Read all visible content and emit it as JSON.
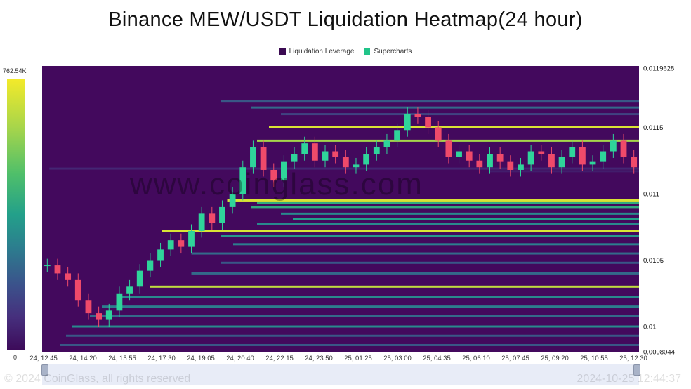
{
  "page": {
    "title": "Binance MEW/USDT Liquidation Heatmap(24 hour)",
    "watermark": "www.coinglass.com",
    "footer_copyright": "© 2024 CoinGlass, all rights reserved",
    "footer_timestamp": "2024-10-25 12:44:37"
  },
  "legend": {
    "items": [
      {
        "label": "Liquidation Leverage",
        "color": "#3b0a52"
      },
      {
        "label": "Supercharts",
        "color": "#21c489"
      }
    ]
  },
  "colorbar": {
    "max_label": "762.54K",
    "min_label": "0"
  },
  "chart_data": {
    "type": "heatmap",
    "title": "Binance MEW/USDT Liquidation Heatmap(24 hour)",
    "ylim": [
      0.0098044,
      0.0119628
    ],
    "y_tick_labels": [
      "0.0119628",
      "0.0115",
      "0.011",
      "0.0105",
      "0.01",
      "0.0098044"
    ],
    "y_tick_values": [
      0.0119628,
      0.0115,
      0.011,
      0.0105,
      0.01,
      0.0098044
    ],
    "x_tick_labels": [
      "24, 12:45",
      "24, 14:20",
      "24, 15:55",
      "24, 17:30",
      "24, 19:05",
      "24, 20:40",
      "24, 22:15",
      "24, 23:50",
      "25, 01:25",
      "25, 03:00",
      "25, 04:35",
      "25, 06:10",
      "25, 07:45",
      "25, 09:20",
      "25, 10:55",
      "25, 12:30"
    ],
    "price_series": [
      0.01046,
      0.0104,
      0.01035,
      0.0102,
      0.0101,
      0.01005,
      0.01012,
      0.01025,
      0.0103,
      0.01042,
      0.0105,
      0.01058,
      0.01065,
      0.0106,
      0.01072,
      0.01085,
      0.01078,
      0.0109,
      0.011,
      0.0112,
      0.01135,
      0.01118,
      0.0111,
      0.01124,
      0.0113,
      0.01138,
      0.01125,
      0.01132,
      0.01128,
      0.0112,
      0.01122,
      0.0113,
      0.01135,
      0.0114,
      0.01148,
      0.0116,
      0.01158,
      0.0115,
      0.0114,
      0.01128,
      0.01132,
      0.01125,
      0.0112,
      0.0113,
      0.01124,
      0.01118,
      0.01122,
      0.01132,
      0.0113,
      0.0112,
      0.01128,
      0.01135,
      0.01122,
      0.01124,
      0.01132,
      0.0114,
      0.01128,
      0.0112
    ],
    "liquidation_bands": [
      {
        "price": 0.01119,
        "x_start": 0.012,
        "level": 0.15
      },
      {
        "price": 0.01117,
        "x_start": 0.75,
        "level": 0.1
      },
      {
        "price": 0.0117,
        "x_start": 0.3,
        "level": 0.3
      },
      {
        "price": 0.01165,
        "x_start": 0.35,
        "level": 0.35
      },
      {
        "price": 0.0116,
        "x_start": 0.4,
        "level": 0.25
      },
      {
        "price": 0.0115,
        "x_start": 0.38,
        "level": 0.95
      },
      {
        "price": 0.0114,
        "x_start": 0.36,
        "level": 0.85
      },
      {
        "price": 0.01095,
        "x_start": 0.31,
        "level": 0.95
      },
      {
        "price": 0.01093,
        "x_start": 0.36,
        "level": 0.6
      },
      {
        "price": 0.0109,
        "x_start": 0.35,
        "level": 0.6
      },
      {
        "price": 0.01085,
        "x_start": 0.4,
        "level": 0.45
      },
      {
        "price": 0.01081,
        "x_start": 0.42,
        "level": 0.55
      },
      {
        "price": 0.01077,
        "x_start": 0.36,
        "level": 0.45
      },
      {
        "price": 0.01072,
        "x_start": 0.2,
        "level": 0.95
      },
      {
        "price": 0.01068,
        "x_start": 0.3,
        "level": 0.5
      },
      {
        "price": 0.01062,
        "x_start": 0.32,
        "level": 0.4
      },
      {
        "price": 0.01055,
        "x_start": 0.25,
        "level": 0.35
      },
      {
        "price": 0.01048,
        "x_start": 0.3,
        "level": 0.3
      },
      {
        "price": 0.0104,
        "x_start": 0.25,
        "level": 0.35
      },
      {
        "price": 0.0103,
        "x_start": 0.18,
        "level": 0.9
      },
      {
        "price": 0.01022,
        "x_start": 0.13,
        "level": 0.45
      },
      {
        "price": 0.01015,
        "x_start": 0.1,
        "level": 0.4
      },
      {
        "price": 0.01008,
        "x_start": 0.08,
        "level": 0.35
      },
      {
        "price": 0.01,
        "x_start": 0.05,
        "level": 0.45
      },
      {
        "price": 0.00993,
        "x_start": 0.04,
        "level": 0.3
      },
      {
        "price": 0.00986,
        "x_start": 0.03,
        "level": 0.3
      }
    ]
  }
}
